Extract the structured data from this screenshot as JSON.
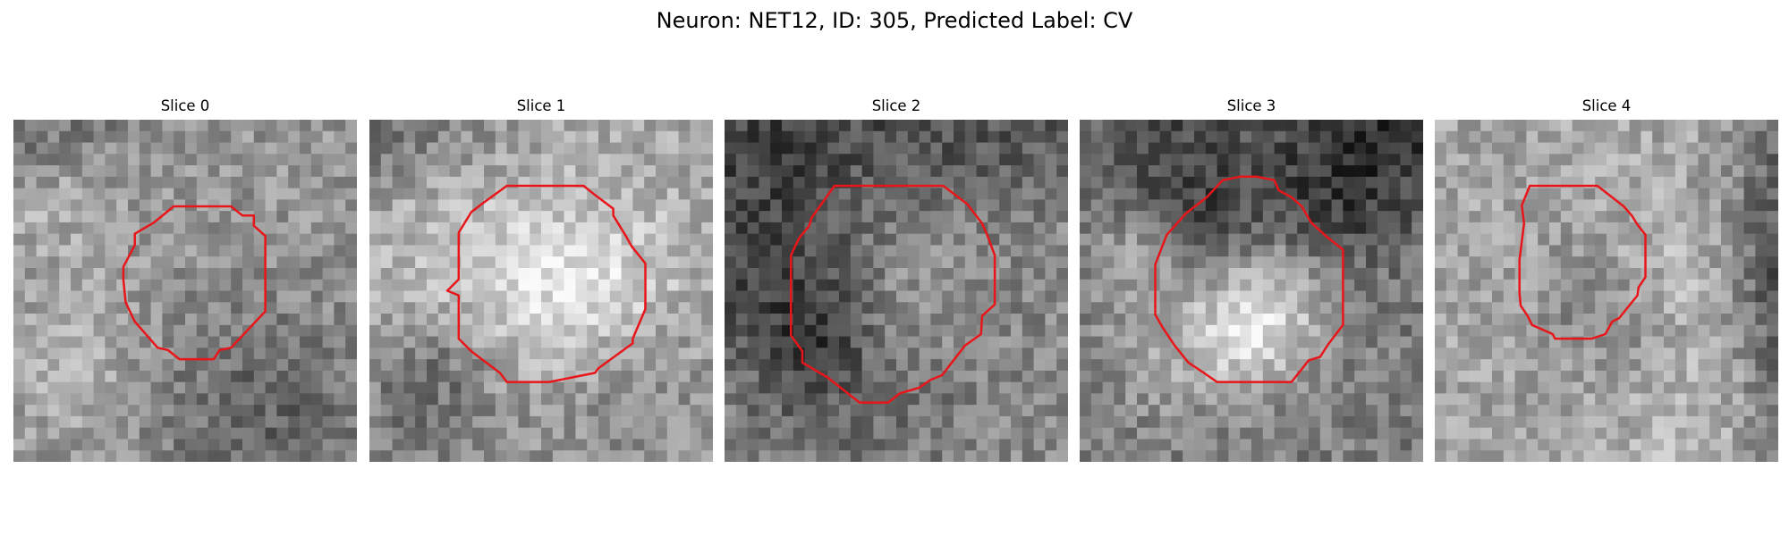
{
  "figure": {
    "title": "Neuron: NET12, ID: 305, Predicted Label: CV"
  },
  "panels": [
    {
      "title": "Slice 0",
      "seed": 11,
      "base": 150,
      "center_brightness": -20,
      "dark_corner": "top-left",
      "contour_color": "#e8161a"
    },
    {
      "title": "Slice 1",
      "seed": 23,
      "base": 165,
      "center_brightness": 20,
      "dark_corner": "top-left",
      "contour_color": "#e8161a"
    },
    {
      "title": "Slice 2",
      "seed": 37,
      "base": 140,
      "center_brightness": 45,
      "dark_corner": "top",
      "contour_color": "#e8161a"
    },
    {
      "title": "Slice 3",
      "seed": 53,
      "base": 125,
      "center_brightness": 90,
      "dark_corner": "top-right",
      "contour_color": "#e8161a"
    },
    {
      "title": "Slice 4",
      "seed": 71,
      "base": 165,
      "center_brightness": -70,
      "dark_corner": "right",
      "contour_color": "#e8161a"
    }
  ]
}
